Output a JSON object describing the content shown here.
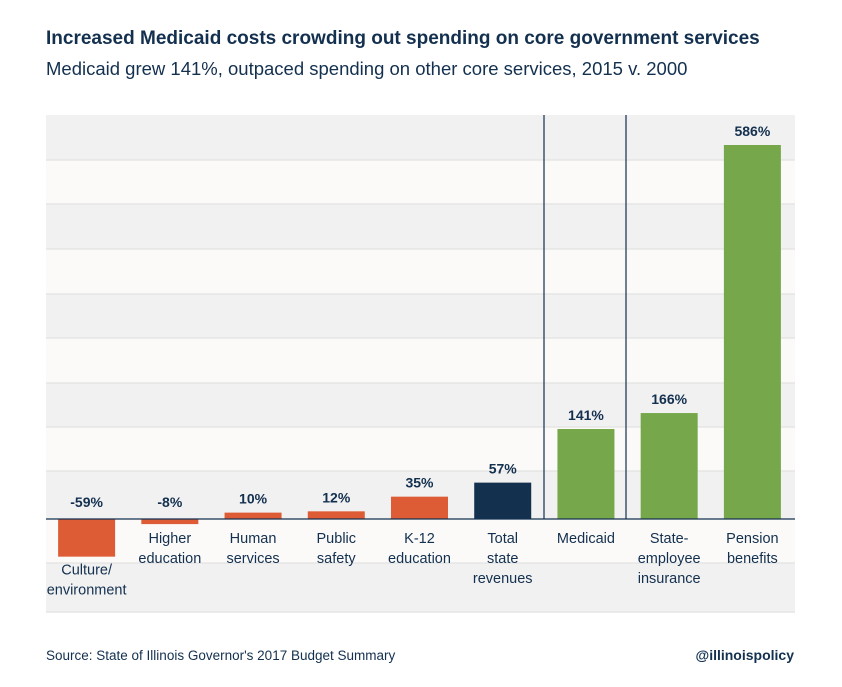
{
  "header": {
    "title": "Increased Medicaid costs crowding out spending on core government services",
    "subtitle": "Medicaid grew 141%, outpaced spending on other core services, 2015 v. 2000"
  },
  "footer": {
    "source": "Source: State of Illinois Governor's 2017 Budget Summary",
    "handle": "@illinoispolicy"
  },
  "chart_data": {
    "type": "bar",
    "title": "Increased Medicaid costs crowding out spending on core government services",
    "subtitle": "Medicaid grew 141%, outpaced spending on other core services, 2015 v. 2000",
    "categories": [
      [
        "Culture/",
        "environment"
      ],
      [
        "Higher",
        "education"
      ],
      [
        "Human",
        "services"
      ],
      [
        "Public",
        "safety"
      ],
      [
        "K-12",
        "education"
      ],
      [
        "Total",
        "state",
        "revenues"
      ],
      [
        "Medicaid"
      ],
      [
        "State-",
        "employee",
        "insurance"
      ],
      [
        "Pension",
        "benefits"
      ]
    ],
    "values": [
      -59,
      -8,
      10,
      12,
      35,
      57,
      141,
      166,
      586
    ],
    "labels": [
      "-59%",
      "-8%",
      "10%",
      "12%",
      "35%",
      "57%",
      "141%",
      "166%",
      "586%"
    ],
    "colors": [
      "#dd5c36",
      "#dd5c36",
      "#dd5c36",
      "#dd5c36",
      "#dd5c36",
      "#13304f",
      "#76a74b",
      "#76a74b",
      "#76a74b"
    ],
    "ylim": [
      -140,
      630
    ],
    "grid": true,
    "unit": "%"
  }
}
